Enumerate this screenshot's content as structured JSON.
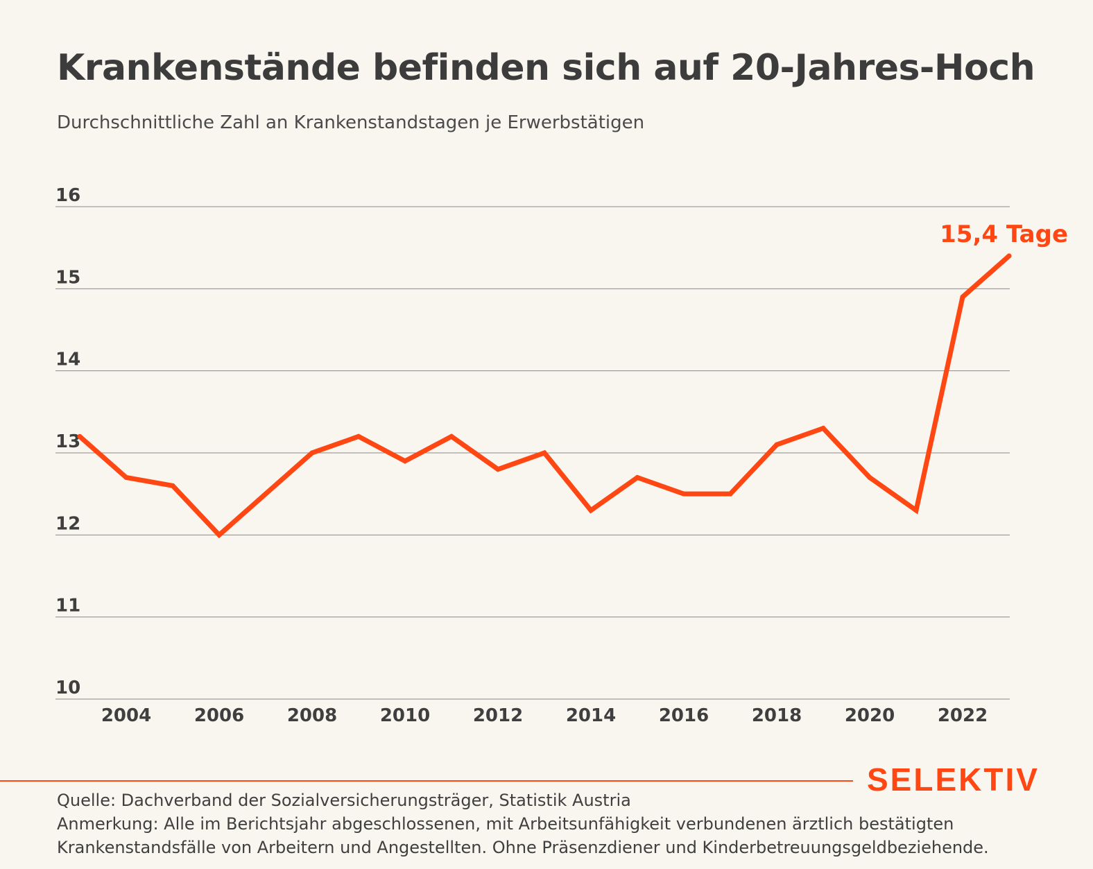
{
  "title": "Krankenstände befinden sich auf 20-Jahres-Hoch",
  "subtitle": "Durchschnittliche Zahl an Krankenstandstagen je Erwerbstätigen",
  "brand": "SELEKTIV",
  "footer": {
    "source": "Quelle: Dachverband der Sozialversicherungsträger, Statistik Austria",
    "note": "Anmerkung: Alle im Berichtsjahr abgeschlossenen, mit Arbeitsunfähigkeit verbundenen ärztlich bestätigten Krankenstandsfälle von Arbeitern und Angestellten. Ohne Präsenzdiener und Kinderbetreuungsgeldbeziehende."
  },
  "colors": {
    "background": "#f8f6ef",
    "accent": "#ff4713",
    "grid": "#8a8a8a",
    "text": "#3f3f3f"
  },
  "chart_data": {
    "type": "line",
    "x": [
      2003,
      2004,
      2005,
      2006,
      2007,
      2008,
      2009,
      2010,
      2011,
      2012,
      2013,
      2014,
      2015,
      2016,
      2017,
      2018,
      2019,
      2020,
      2021,
      2022,
      2023
    ],
    "series": [
      {
        "values": [
          13.2,
          12.7,
          12.6,
          12.0,
          12.5,
          13.0,
          13.2,
          12.9,
          13.2,
          12.8,
          13.0,
          12.3,
          12.7,
          12.5,
          12.5,
          13.1,
          13.3,
          12.7,
          12.3,
          14.9,
          15.4
        ]
      }
    ],
    "xticks": [
      2004,
      2006,
      2008,
      2010,
      2012,
      2014,
      2016,
      2018,
      2020,
      2022
    ],
    "yticks": [
      10,
      11,
      12,
      13,
      14,
      15,
      16
    ],
    "ylim": [
      10,
      16
    ],
    "xlim": [
      2003,
      2023
    ],
    "grid": true,
    "end_label": "15,4 Tage"
  }
}
